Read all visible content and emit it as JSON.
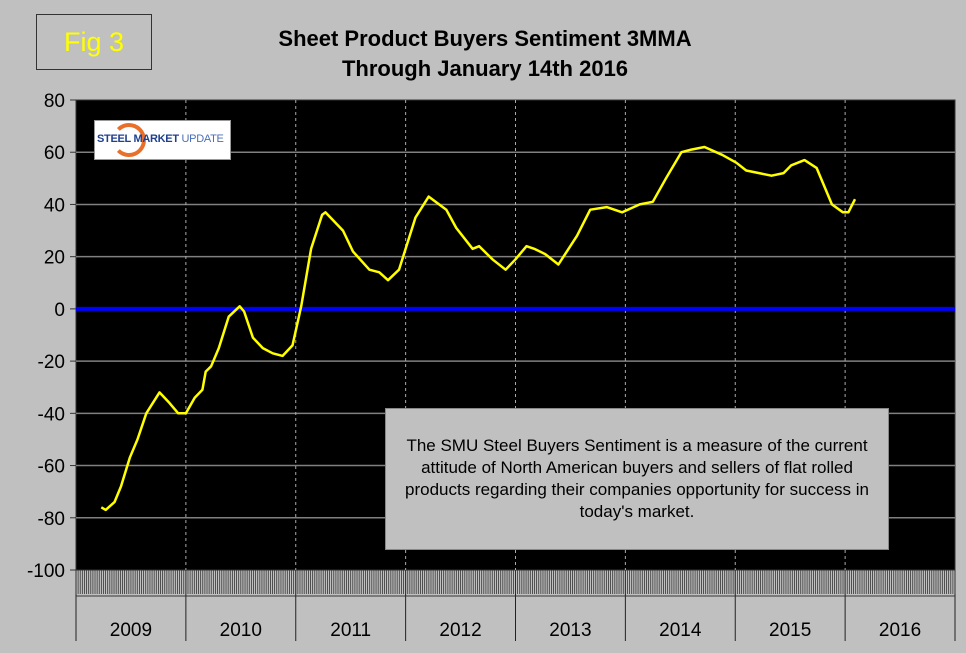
{
  "figure_label": "Fig 3",
  "logo_text": {
    "strong": "STEEL MARKET",
    "light": "UPDATE"
  },
  "note": "The SMU Steel Buyers Sentiment is a measure of the current attitude of North American buyers and sellers of flat rolled products regarding their companies opportunity for success in today's market.",
  "chart_data": {
    "type": "line",
    "title": "Sheet Product Buyers Sentiment 3MMA",
    "subtitle": "Through January 14th 2016",
    "xlabel": "",
    "ylabel": "",
    "ylim": [
      -100,
      80
    ],
    "yticks": [
      80,
      60,
      40,
      20,
      0,
      -20,
      -40,
      -60,
      -80,
      -100
    ],
    "xlim": [
      2009,
      2017
    ],
    "xtick_labels": [
      "2009",
      "2010",
      "2011",
      "2012",
      "2013",
      "2014",
      "2015",
      "2016"
    ],
    "grid": true,
    "reference_line": {
      "value": 0,
      "color": "#0000ff"
    },
    "series": [
      {
        "name": "Sheet Product Buyers Sentiment 3MMA",
        "color": "#ffff00",
        "x": [
          2009.23,
          2009.27,
          2009.35,
          2009.41,
          2009.49,
          2009.56,
          2009.64,
          2009.76,
          2009.85,
          2009.93,
          2010.0,
          2010.08,
          2010.15,
          2010.18,
          2010.23,
          2010.3,
          2010.39,
          2010.49,
          2010.53,
          2010.61,
          2010.7,
          2010.79,
          2010.88,
          2010.97,
          2011.05,
          2011.14,
          2011.24,
          2011.27,
          2011.43,
          2011.52,
          2011.67,
          2011.76,
          2011.84,
          2011.94,
          2012.09,
          2012.21,
          2012.37,
          2012.46,
          2012.61,
          2012.67,
          2012.79,
          2012.91,
          2013.0,
          2013.1,
          2013.17,
          2013.27,
          2013.39,
          2013.56,
          2013.68,
          2013.83,
          2013.97,
          2014.13,
          2014.25,
          2014.37,
          2014.51,
          2014.6,
          2014.72,
          2014.88,
          2015.01,
          2015.1,
          2015.33,
          2015.44,
          2015.51,
          2015.63,
          2015.74,
          2015.88,
          2015.98,
          2016.03,
          2016.09
        ],
        "values": [
          -76,
          -77,
          -74,
          -68,
          -57,
          -50,
          -40,
          -32,
          -36,
          -40,
          -40,
          -34,
          -31,
          -24,
          -22,
          -15,
          -3,
          1,
          -1,
          -11,
          -15,
          -17,
          -18,
          -14,
          1,
          23,
          36,
          37,
          30,
          22,
          15,
          14,
          11,
          15,
          35,
          43,
          38,
          31,
          23,
          24,
          19,
          15,
          19,
          24,
          23,
          21,
          17,
          28,
          38,
          39,
          37,
          40,
          41,
          50,
          60,
          61,
          62,
          59,
          56,
          53,
          51,
          52,
          55,
          57,
          54,
          40,
          37,
          37,
          42
        ]
      }
    ]
  }
}
